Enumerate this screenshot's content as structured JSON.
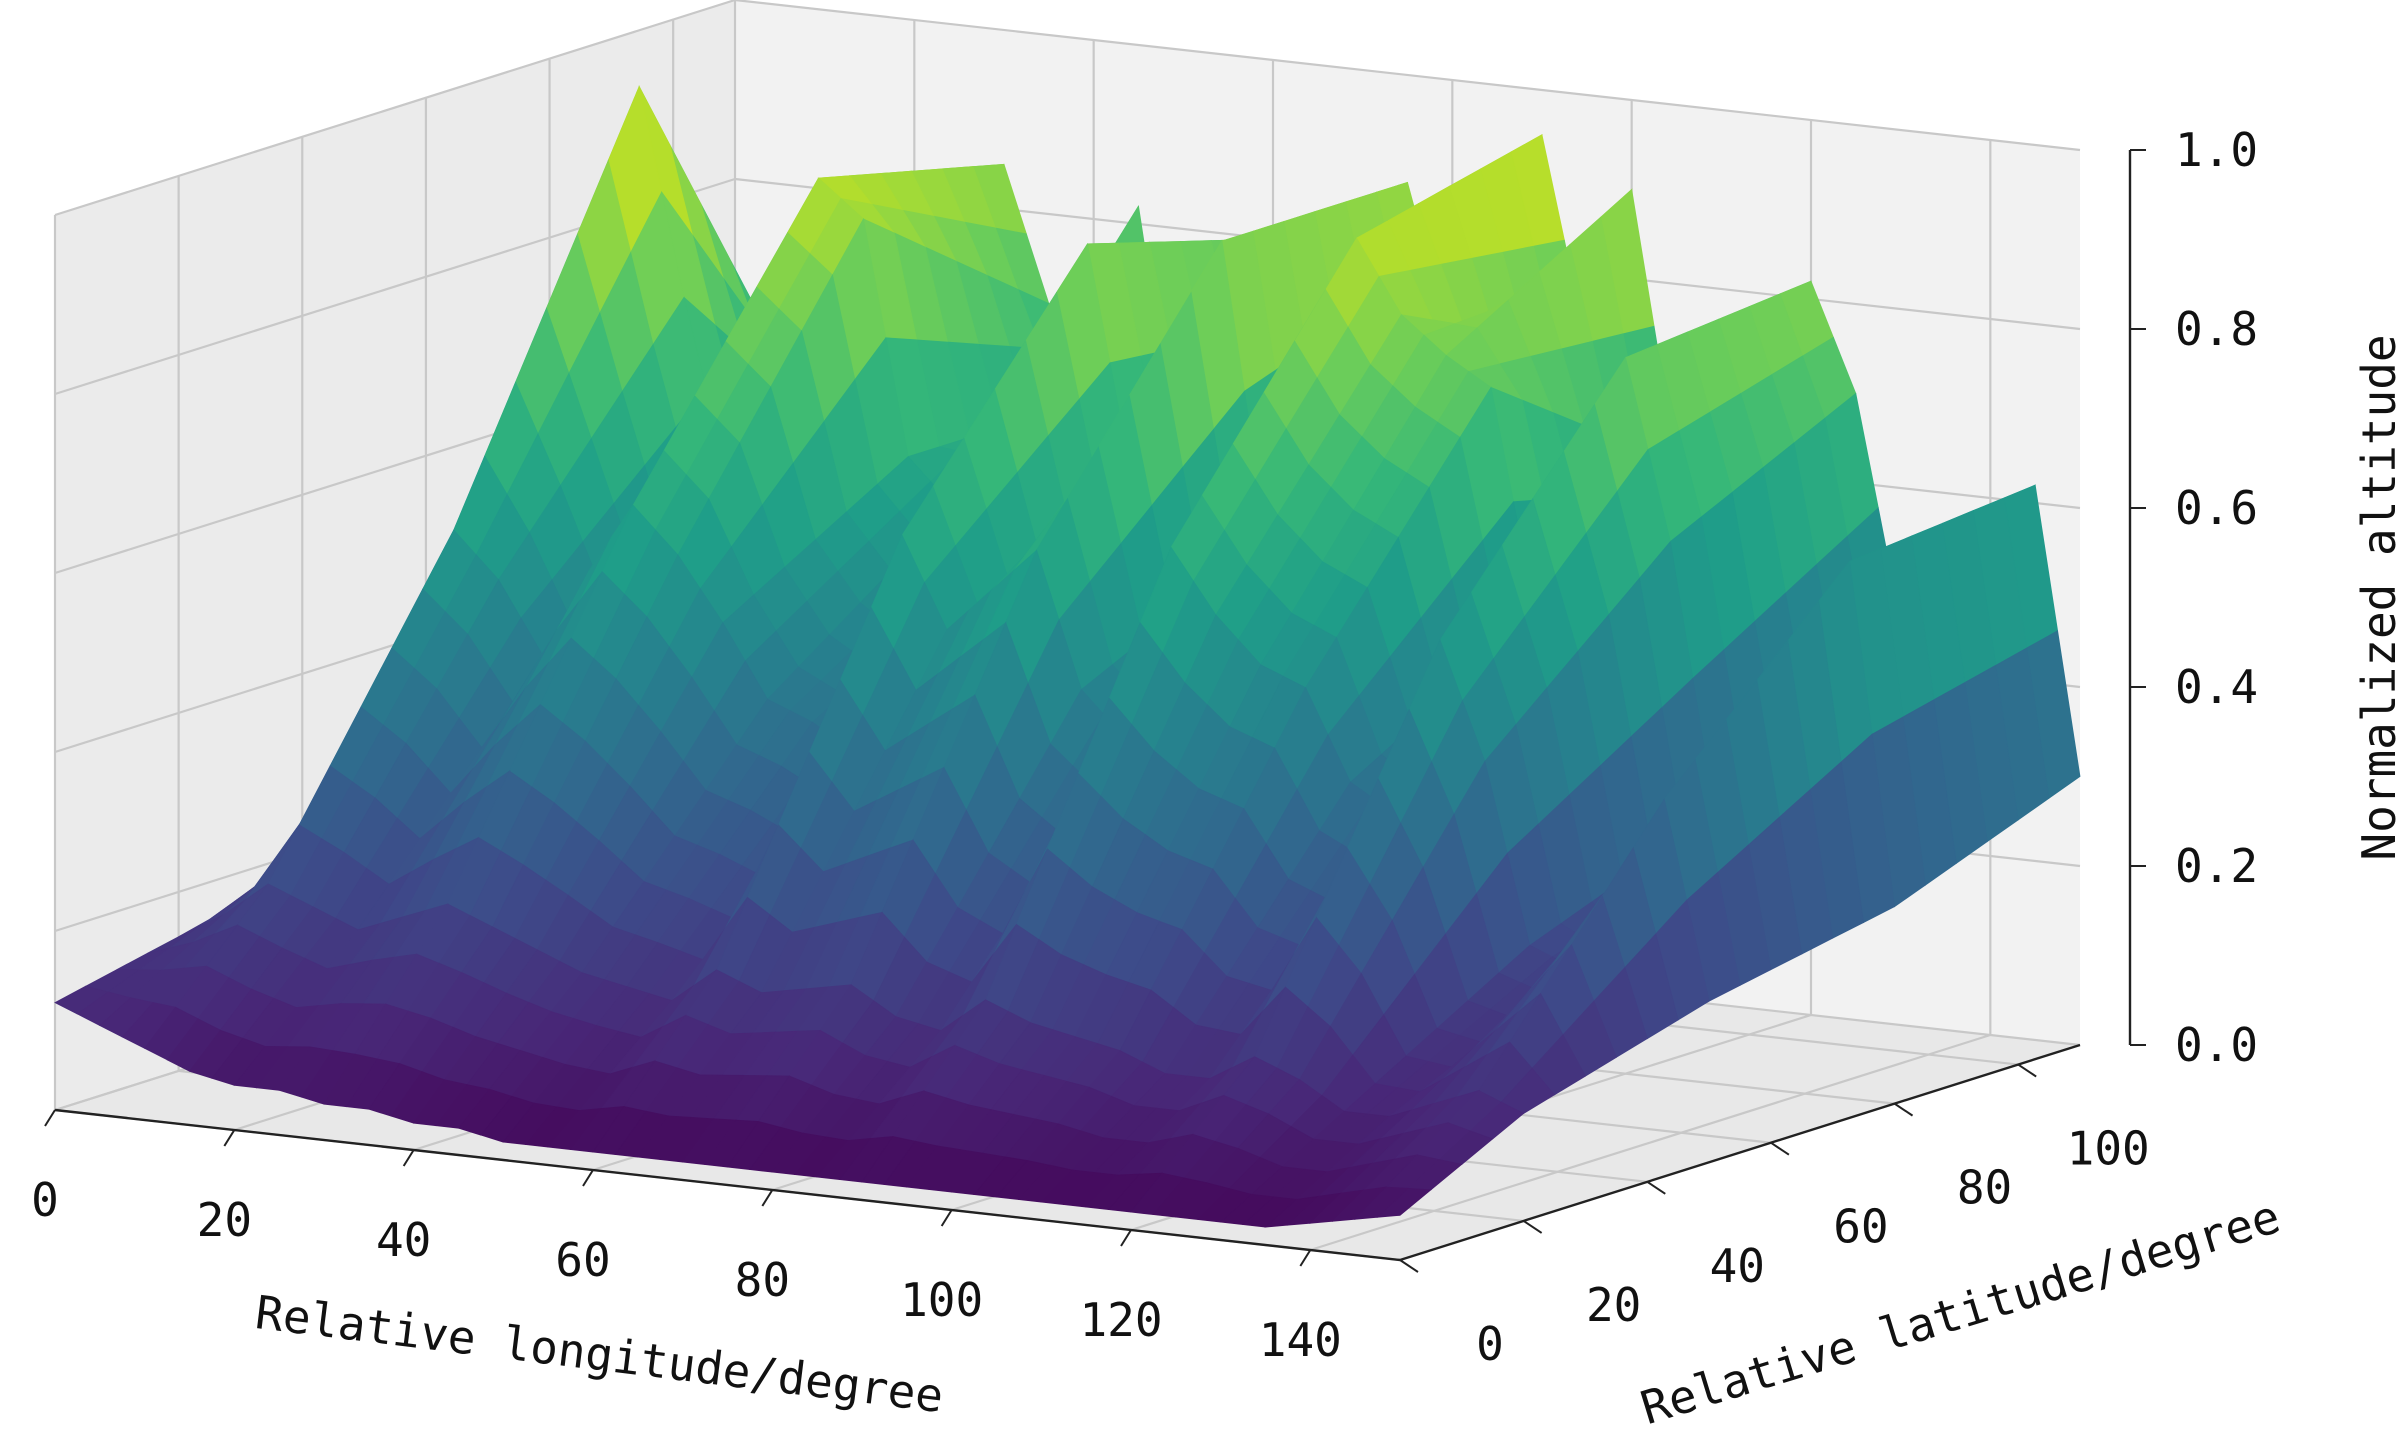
{
  "chart_data": {
    "type": "surface3d",
    "title": "",
    "colormap": "viridis",
    "colormap_stops": [
      "#440154",
      "#482878",
      "#3e4989",
      "#31688e",
      "#26828e",
      "#1f9e89",
      "#35b779",
      "#6ece58",
      "#b5de2b",
      "#fde725"
    ],
    "xlabel": "Relative longitude/degree",
    "ylabel": "Relative latitude/degree",
    "zlabel": "Normalized altitude",
    "xlim": [
      0,
      150
    ],
    "ylim": [
      0,
      110
    ],
    "zlim": [
      0,
      1.0
    ],
    "xticks": [
      0,
      20,
      40,
      60,
      80,
      100,
      120,
      140
    ],
    "yticks": [
      0,
      20,
      40,
      60,
      80,
      100
    ],
    "zticks": [
      0.0,
      0.2,
      0.4,
      0.6,
      0.8,
      1.0
    ],
    "xtick_labels": [
      "0",
      "20",
      "40",
      "60",
      "80",
      "100",
      "120",
      "140"
    ],
    "ytick_labels": [
      "0",
      "20",
      "40",
      "60",
      "80",
      "100"
    ],
    "ztick_labels": [
      "0.0",
      "0.2",
      "0.4",
      "0.6",
      "0.8",
      "1.0"
    ],
    "grid": true,
    "ridge_profiles": [
      {
        "y": 110,
        "x": [
          0,
          5,
          10,
          15,
          20,
          25,
          30,
          35,
          40,
          45,
          50,
          55,
          60,
          65,
          70,
          75,
          80,
          85,
          90,
          95,
          100,
          105,
          110,
          115,
          120,
          125,
          130,
          135,
          140,
          145,
          150
        ],
        "z": [
          0.28,
          0.36,
          0.52,
          0.5,
          0.42,
          0.62,
          0.85,
          0.7,
          0.6,
          0.82,
          0.5,
          0.45,
          0.8,
          0.62,
          0.55,
          0.88,
          0.7,
          0.6,
          0.95,
          0.72,
          0.9,
          0.6,
          0.55,
          0.5,
          0.82,
          0.7,
          0.45,
          0.35,
          0.4,
          0.62,
          0.3
        ]
      },
      {
        "y": 80,
        "x": [
          0,
          5,
          10,
          15,
          20,
          25,
          30,
          35,
          40,
          45,
          50,
          55,
          60,
          65,
          70,
          75,
          80,
          85,
          90,
          95,
          100,
          105,
          110,
          115,
          120,
          125,
          130,
          135,
          140,
          145,
          150
        ],
        "z": [
          0.24,
          0.4,
          0.98,
          0.75,
          0.55,
          0.7,
          0.9,
          0.86,
          0.6,
          0.55,
          0.5,
          0.48,
          0.86,
          0.6,
          0.7,
          0.88,
          0.55,
          0.5,
          0.9,
          0.82,
          0.78,
          0.75,
          0.5,
          0.45,
          0.8,
          0.6,
          0.3,
          0.25,
          0.45,
          0.6,
          0.22
        ]
      },
      {
        "y": 50,
        "x": [
          0,
          5,
          10,
          15,
          20,
          25,
          30,
          35,
          40,
          45,
          50,
          55,
          60,
          65,
          70,
          75,
          80,
          85,
          90,
          95,
          100,
          105,
          110,
          115,
          120,
          125,
          130,
          135,
          140,
          145,
          150
        ],
        "z": [
          0.2,
          0.3,
          0.55,
          0.5,
          0.42,
          0.52,
          0.6,
          0.55,
          0.48,
          0.4,
          0.38,
          0.35,
          0.6,
          0.5,
          0.55,
          0.6,
          0.45,
          0.4,
          0.62,
          0.55,
          0.5,
          0.48,
          0.38,
          0.35,
          0.55,
          0.42,
          0.22,
          0.2,
          0.3,
          0.4,
          0.18
        ]
      },
      {
        "y": 20,
        "x": [
          0,
          5,
          10,
          15,
          20,
          25,
          30,
          35,
          40,
          45,
          50,
          55,
          60,
          65,
          70,
          75,
          80,
          85,
          90,
          95,
          100,
          105,
          110,
          115,
          120,
          125,
          130,
          135,
          140,
          145,
          150
        ],
        "z": [
          0.15,
          0.18,
          0.22,
          0.2,
          0.18,
          0.2,
          0.22,
          0.2,
          0.18,
          0.16,
          0.15,
          0.14,
          0.18,
          0.16,
          0.17,
          0.18,
          0.15,
          0.14,
          0.18,
          0.16,
          0.15,
          0.14,
          0.12,
          0.12,
          0.15,
          0.13,
          0.1,
          0.1,
          0.12,
          0.14,
          0.12
        ]
      },
      {
        "y": 0,
        "x": [
          0,
          5,
          10,
          15,
          20,
          25,
          30,
          35,
          40,
          45,
          50,
          55,
          60,
          65,
          70,
          75,
          80,
          85,
          90,
          95,
          100,
          105,
          110,
          115,
          120,
          125,
          130,
          135,
          140,
          145,
          150
        ],
        "z": [
          0.12,
          0.1,
          0.08,
          0.06,
          0.05,
          0.05,
          0.04,
          0.04,
          0.03,
          0.03,
          0.02,
          0.02,
          0.02,
          0.02,
          0.02,
          0.02,
          0.02,
          0.02,
          0.02,
          0.02,
          0.02,
          0.02,
          0.02,
          0.02,
          0.02,
          0.02,
          0.02,
          0.02,
          0.03,
          0.04,
          0.05
        ]
      }
    ]
  }
}
